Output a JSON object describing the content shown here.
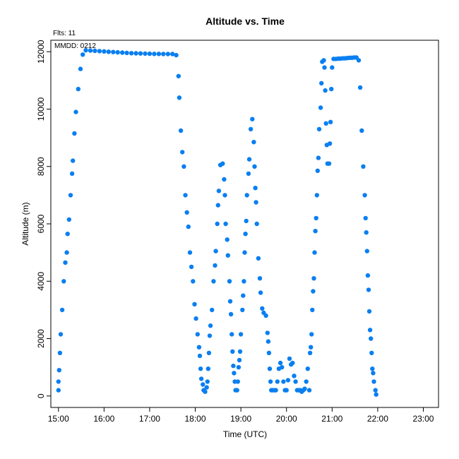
{
  "chart_data": {
    "type": "scatter",
    "title": "Altitude  vs. Time",
    "subtitle": "Flts: 11",
    "annotation": "MMDD: 0212",
    "xlabel": "Time (UTC)",
    "ylabel": "Altitude (m)",
    "xlim": [
      "14:50",
      "23:20"
    ],
    "ylim": [
      -400,
      12400
    ],
    "x_ticks": [
      "15:00",
      "16:00",
      "17:00",
      "18:00",
      "19:00",
      "20:00",
      "21:00",
      "22:00",
      "23:00"
    ],
    "y_ticks": [
      0,
      2000,
      4000,
      6000,
      8000,
      10000,
      12000
    ],
    "grid": false,
    "marker_color": "#0a7ff0",
    "series": [
      {
        "points": [
          [
            "15:00",
            200
          ],
          [
            "15:00",
            500
          ],
          [
            "15:01",
            900
          ],
          [
            "15:02",
            1500
          ],
          [
            "15:03",
            2150
          ],
          [
            "15:05",
            3000
          ],
          [
            "15:07",
            4000
          ],
          [
            "15:09",
            4650
          ],
          [
            "15:11",
            5000
          ],
          [
            "15:12",
            5650
          ],
          [
            "15:14",
            6150
          ],
          [
            "15:16",
            7000
          ],
          [
            "15:18",
            7750
          ],
          [
            "15:19",
            8200
          ],
          [
            "15:21",
            9150
          ],
          [
            "15:23",
            9900
          ],
          [
            "15:26",
            10700
          ],
          [
            "15:29",
            11400
          ],
          [
            "15:32",
            11900
          ],
          [
            "15:36",
            12050
          ],
          [
            "15:42",
            12040
          ],
          [
            "15:48",
            12030
          ],
          [
            "15:54",
            12020
          ],
          [
            "16:00",
            12010
          ],
          [
            "16:06",
            12000
          ],
          [
            "16:12",
            11990
          ],
          [
            "16:18",
            11980
          ],
          [
            "16:24",
            11970
          ],
          [
            "16:30",
            11960
          ],
          [
            "16:36",
            11950
          ],
          [
            "16:42",
            11945
          ],
          [
            "16:48",
            11940
          ],
          [
            "16:54",
            11935
          ],
          [
            "17:00",
            11930
          ],
          [
            "17:06",
            11925
          ],
          [
            "17:12",
            11925
          ],
          [
            "17:18",
            11920
          ],
          [
            "17:24",
            11920
          ],
          [
            "17:30",
            11920
          ],
          [
            "17:35",
            11880
          ],
          [
            "17:38",
            11150
          ],
          [
            "17:39",
            10400
          ],
          [
            "17:41",
            9250
          ],
          [
            "17:43",
            8500
          ],
          [
            "17:45",
            8000
          ],
          [
            "17:47",
            7000
          ],
          [
            "17:49",
            6400
          ],
          [
            "17:51",
            5900
          ],
          [
            "17:53",
            5000
          ],
          [
            "17:55",
            4500
          ],
          [
            "17:57",
            4000
          ],
          [
            "17:59",
            3200
          ],
          [
            "18:01",
            2700
          ],
          [
            "18:03",
            2150
          ],
          [
            "18:05",
            1700
          ],
          [
            "18:06",
            1400
          ],
          [
            "18:07",
            950
          ],
          [
            "18:08",
            600
          ],
          [
            "18:10",
            400
          ],
          [
            "18:11",
            200
          ],
          [
            "18:13",
            150
          ],
          [
            "18:15",
            300
          ],
          [
            "18:16",
            500
          ],
          [
            "18:17",
            950
          ],
          [
            "18:18",
            1500
          ],
          [
            "18:19",
            2100
          ],
          [
            "18:20",
            2450
          ],
          [
            "18:22",
            3000
          ],
          [
            "18:24",
            4000
          ],
          [
            "18:26",
            4550
          ],
          [
            "18:27",
            5050
          ],
          [
            "18:29",
            6000
          ],
          [
            "18:30",
            6650
          ],
          [
            "18:31",
            7150
          ],
          [
            "18:33",
            8050
          ],
          [
            "18:36",
            8100
          ],
          [
            "18:38",
            7550
          ],
          [
            "18:39",
            7000
          ],
          [
            "18:40",
            6000
          ],
          [
            "18:42",
            5450
          ],
          [
            "18:43",
            4900
          ],
          [
            "18:45",
            4000
          ],
          [
            "18:46",
            3300
          ],
          [
            "18:47",
            2850
          ],
          [
            "18:48",
            2150
          ],
          [
            "18:49",
            1550
          ],
          [
            "18:50",
            1050
          ],
          [
            "18:51",
            800
          ],
          [
            "18:52",
            500
          ],
          [
            "18:53",
            200
          ],
          [
            "18:55",
            200
          ],
          [
            "18:56",
            500
          ],
          [
            "18:57",
            1000
          ],
          [
            "18:58",
            1250
          ],
          [
            "18:59",
            1550
          ],
          [
            "19:00",
            2150
          ],
          [
            "19:02",
            3000
          ],
          [
            "19:03",
            3500
          ],
          [
            "19:04",
            4000
          ],
          [
            "19:05",
            5000
          ],
          [
            "19:06",
            5650
          ],
          [
            "19:07",
            6100
          ],
          [
            "19:08",
            7000
          ],
          [
            "19:10",
            7750
          ],
          [
            "19:11",
            8250
          ],
          [
            "19:13",
            9300
          ],
          [
            "19:15",
            9650
          ],
          [
            "19:17",
            8850
          ],
          [
            "19:18",
            8000
          ],
          [
            "19:19",
            7250
          ],
          [
            "19:20",
            6750
          ],
          [
            "19:21",
            6000
          ],
          [
            "19:23",
            4800
          ],
          [
            "19:25",
            4100
          ],
          [
            "19:26",
            3600
          ],
          [
            "19:28",
            3050
          ],
          [
            "19:30",
            2900
          ],
          [
            "19:33",
            2800
          ],
          [
            "19:35",
            2200
          ],
          [
            "19:36",
            1900
          ],
          [
            "19:37",
            1500
          ],
          [
            "19:38",
            950
          ],
          [
            "19:39",
            500
          ],
          [
            "19:40",
            200
          ],
          [
            "19:42",
            200
          ],
          [
            "19:44",
            200
          ],
          [
            "19:46",
            200
          ],
          [
            "19:48",
            500
          ],
          [
            "19:50",
            950
          ],
          [
            "19:52",
            1150
          ],
          [
            "19:54",
            1000
          ],
          [
            "19:56",
            500
          ],
          [
            "19:58",
            200
          ],
          [
            "20:00",
            200
          ],
          [
            "20:02",
            550
          ],
          [
            "20:04",
            1300
          ],
          [
            "20:06",
            1100
          ],
          [
            "20:08",
            1150
          ],
          [
            "20:10",
            700
          ],
          [
            "20:12",
            500
          ],
          [
            "20:14",
            200
          ],
          [
            "20:16",
            200
          ],
          [
            "20:18",
            200
          ],
          [
            "20:20",
            150
          ],
          [
            "20:22",
            200
          ],
          [
            "20:24",
            250
          ],
          [
            "20:26",
            500
          ],
          [
            "20:28",
            950
          ],
          [
            "20:30",
            200
          ],
          [
            "20:31",
            1500
          ],
          [
            "20:32",
            1700
          ],
          [
            "20:33",
            2150
          ],
          [
            "20:34",
            3000
          ],
          [
            "20:35",
            3650
          ],
          [
            "20:36",
            4100
          ],
          [
            "20:37",
            5000
          ],
          [
            "20:38",
            5750
          ],
          [
            "20:39",
            6200
          ],
          [
            "20:40",
            7000
          ],
          [
            "20:41",
            7850
          ],
          [
            "20:42",
            8300
          ],
          [
            "20:43",
            9300
          ],
          [
            "20:45",
            10050
          ],
          [
            "20:46",
            10900
          ],
          [
            "20:47",
            11650
          ],
          [
            "20:49",
            11700
          ],
          [
            "20:50",
            11450
          ],
          [
            "20:51",
            10650
          ],
          [
            "20:52",
            9500
          ],
          [
            "20:53",
            8750
          ],
          [
            "20:54",
            8100
          ],
          [
            "20:56",
            8100
          ],
          [
            "20:57",
            8800
          ],
          [
            "20:58",
            9550
          ],
          [
            "20:59",
            10700
          ],
          [
            "21:00",
            11450
          ],
          [
            "21:02",
            11750
          ],
          [
            "21:05",
            11750
          ],
          [
            "21:08",
            11760
          ],
          [
            "21:11",
            11760
          ],
          [
            "21:14",
            11770
          ],
          [
            "21:17",
            11770
          ],
          [
            "21:20",
            11780
          ],
          [
            "21:23",
            11790
          ],
          [
            "21:26",
            11790
          ],
          [
            "21:29",
            11800
          ],
          [
            "21:32",
            11800
          ],
          [
            "21:35",
            11700
          ],
          [
            "21:37",
            10750
          ],
          [
            "21:39",
            9250
          ],
          [
            "21:41",
            8000
          ],
          [
            "21:43",
            7000
          ],
          [
            "21:44",
            6200
          ],
          [
            "21:45",
            5700
          ],
          [
            "21:46",
            5050
          ],
          [
            "21:47",
            4200
          ],
          [
            "21:48",
            3700
          ],
          [
            "21:49",
            2950
          ],
          [
            "21:50",
            2300
          ],
          [
            "21:51",
            2000
          ],
          [
            "21:52",
            1500
          ],
          [
            "21:53",
            950
          ],
          [
            "21:54",
            800
          ],
          [
            "21:55",
            500
          ],
          [
            "21:57",
            200
          ],
          [
            "21:58",
            50
          ]
        ]
      }
    ]
  }
}
